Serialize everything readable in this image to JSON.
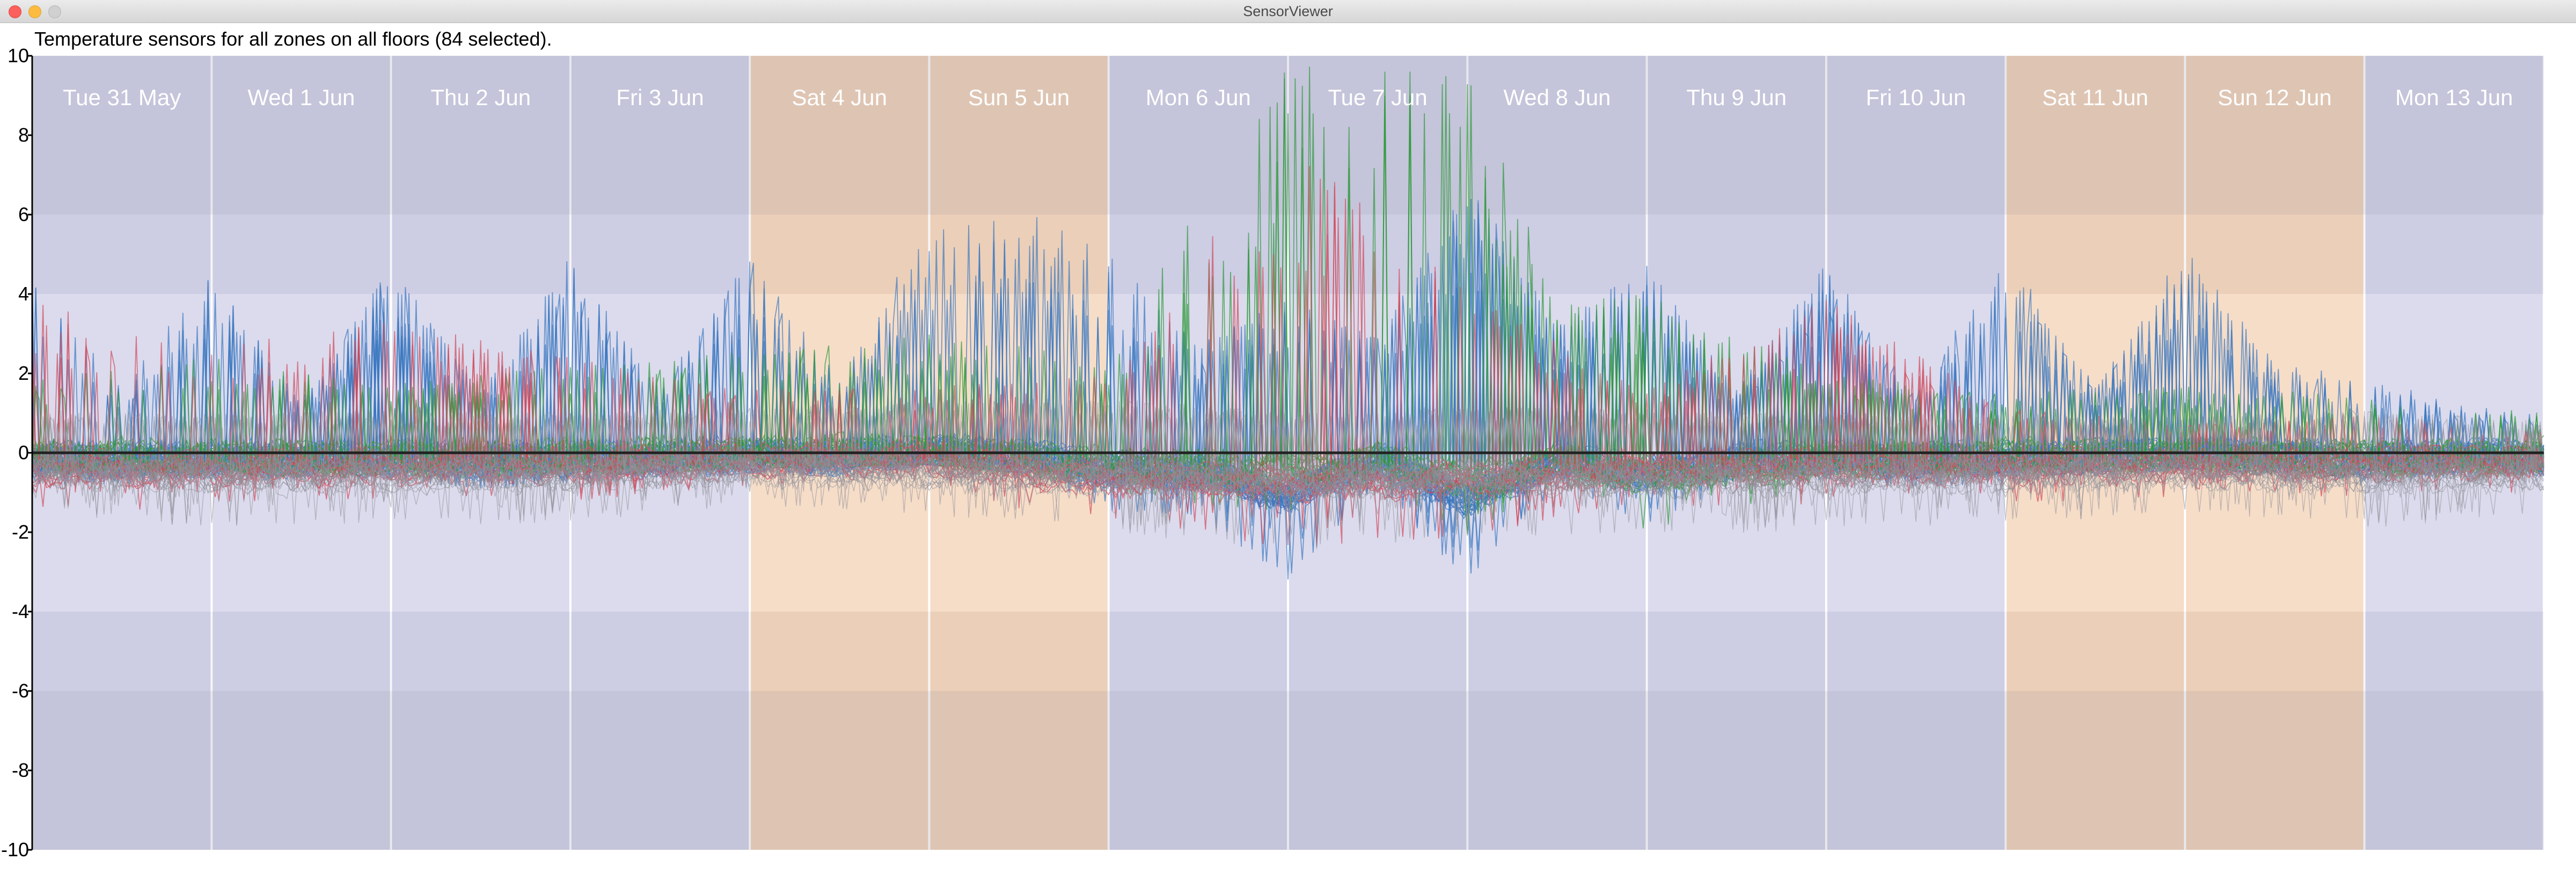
{
  "window": {
    "title": "SensorViewer"
  },
  "header": {
    "description": "Temperature sensors for all zones on all floors (84 selected)."
  },
  "colors": {
    "weekday": "#d4d4ea",
    "weekday_light": "#e2e2f6",
    "weekday_dark": "#c7c7dd",
    "weekend": "#f4d6bc",
    "weekend_dark": "#dcbea4",
    "series_blue": "#3a78c0",
    "series_green": "#2f9a3a",
    "series_red": "#d24a5a",
    "series_gray": "#8f8f99",
    "zero_line": "#222222"
  },
  "chart_data": {
    "type": "line",
    "title": "",
    "xlabel": "",
    "ylabel": "",
    "ylim": [
      -10,
      10
    ],
    "yticks": [
      -10,
      -8,
      -6,
      -4,
      -2,
      0,
      2,
      4,
      6,
      8,
      10
    ],
    "ytick_labels": [
      "-10",
      "-8",
      "-6",
      "-4",
      "-2",
      "0",
      "2",
      "4",
      "6",
      "8",
      "10"
    ],
    "x_domain": [
      "2022-05-31",
      "2022-06-14"
    ],
    "days": [
      {
        "label": "Tue 31 May",
        "weekend": false
      },
      {
        "label": "Wed 1 Jun",
        "weekend": false
      },
      {
        "label": "Thu 2 Jun",
        "weekend": false
      },
      {
        "label": "Fri 3 Jun",
        "weekend": false
      },
      {
        "label": "Sat 4 Jun",
        "weekend": true
      },
      {
        "label": "Sun 5 Jun",
        "weekend": true
      },
      {
        "label": "Mon 6 Jun",
        "weekend": false
      },
      {
        "label": "Tue 7 Jun",
        "weekend": false
      },
      {
        "label": "Wed 8 Jun",
        "weekend": false
      },
      {
        "label": "Thu 9 Jun",
        "weekend": false
      },
      {
        "label": "Fri 10 Jun",
        "weekend": false
      },
      {
        "label": "Sat 11 Jun",
        "weekend": true
      },
      {
        "label": "Sun 12 Jun",
        "weekend": true
      },
      {
        "label": "Mon 13 Jun",
        "weekend": false
      }
    ],
    "grid": true,
    "legend": "none",
    "series_count": 84,
    "series_groups": [
      {
        "color": "series_blue",
        "envelope": [
          [
            0.0,
            -0.8,
            4.5
          ],
          [
            0.5,
            -0.9,
            1.6
          ],
          [
            1.0,
            -0.7,
            4.7
          ],
          [
            1.5,
            -0.8,
            1.4
          ],
          [
            2.0,
            -0.7,
            4.8
          ],
          [
            2.5,
            -0.9,
            1.5
          ],
          [
            3.0,
            -0.8,
            5.0
          ],
          [
            3.5,
            -0.7,
            1.6
          ],
          [
            4.0,
            -0.5,
            5.2
          ],
          [
            4.5,
            -0.6,
            2.0
          ],
          [
            5.0,
            -0.3,
            5.8
          ],
          [
            5.5,
            -0.5,
            6.2
          ],
          [
            6.0,
            -1.5,
            5.0
          ],
          [
            6.5,
            -1.6,
            2.8
          ],
          [
            7.0,
            -3.3,
            4.0
          ],
          [
            7.5,
            -0.8,
            3.0
          ],
          [
            8.0,
            -3.6,
            7.0
          ],
          [
            8.5,
            -0.8,
            3.2
          ],
          [
            9.0,
            -1.8,
            4.8
          ],
          [
            9.5,
            -0.8,
            1.6
          ],
          [
            10.0,
            -0.7,
            4.9
          ],
          [
            10.5,
            -0.9,
            1.6
          ],
          [
            11.0,
            -0.8,
            5.1
          ],
          [
            11.5,
            -0.6,
            1.8
          ],
          [
            12.0,
            -0.4,
            5.2
          ],
          [
            12.5,
            -0.6,
            2.3
          ],
          [
            13.0,
            -0.8,
            2.0
          ],
          [
            13.5,
            -0.6,
            1.2
          ],
          [
            14.0,
            -0.6,
            1.0
          ]
        ]
      },
      {
        "color": "series_green",
        "envelope": [
          [
            0.0,
            -0.6,
            2.0
          ],
          [
            1.0,
            -0.7,
            2.4
          ],
          [
            2.0,
            -0.7,
            1.8
          ],
          [
            3.0,
            -0.6,
            2.2
          ],
          [
            4.0,
            -0.4,
            2.6
          ],
          [
            5.0,
            -0.3,
            3.2
          ],
          [
            6.0,
            -1.2,
            2.4
          ],
          [
            7.0,
            -1.5,
            10.0
          ],
          [
            7.5,
            -0.8,
            10.0
          ],
          [
            8.0,
            -2.2,
            10.0
          ],
          [
            8.5,
            -0.9,
            4.0
          ],
          [
            9.0,
            -2.0,
            4.0
          ],
          [
            10.0,
            -0.8,
            2.0
          ],
          [
            11.0,
            -0.6,
            1.6
          ],
          [
            12.0,
            -0.5,
            1.8
          ],
          [
            13.0,
            -0.7,
            1.4
          ],
          [
            14.0,
            -0.6,
            1.0
          ]
        ]
      },
      {
        "color": "series_red",
        "envelope": [
          [
            0.0,
            -1.6,
            3.8
          ],
          [
            1.0,
            -1.4,
            2.6
          ],
          [
            2.0,
            -1.3,
            3.5
          ],
          [
            3.0,
            -1.2,
            2.4
          ],
          [
            4.0,
            -0.9,
            1.6
          ],
          [
            5.0,
            -0.8,
            1.8
          ],
          [
            6.0,
            -2.2,
            2.0
          ],
          [
            7.0,
            -2.4,
            8.0
          ],
          [
            8.0,
            -2.2,
            4.2
          ],
          [
            9.0,
            -1.4,
            1.6
          ],
          [
            10.0,
            -1.3,
            3.9
          ],
          [
            11.0,
            -1.3,
            1.2
          ],
          [
            12.0,
            -1.2,
            0.8
          ],
          [
            13.0,
            -1.1,
            1.0
          ],
          [
            14.0,
            -1.0,
            0.6
          ]
        ]
      },
      {
        "color": "series_gray",
        "envelope": [
          [
            0.0,
            -1.5,
            1.1
          ],
          [
            1.0,
            -1.9,
            1.0
          ],
          [
            2.0,
            -1.8,
            1.1
          ],
          [
            3.0,
            -1.8,
            1.0
          ],
          [
            4.0,
            -1.3,
            1.2
          ],
          [
            5.0,
            -1.6,
            1.3
          ],
          [
            6.0,
            -2.0,
            1.4
          ],
          [
            7.0,
            -2.5,
            1.0
          ],
          [
            8.0,
            -2.1,
            1.2
          ],
          [
            9.0,
            -2.2,
            1.1
          ],
          [
            10.0,
            -1.9,
            1.0
          ],
          [
            11.0,
            -1.8,
            1.0
          ],
          [
            12.0,
            -1.5,
            0.9
          ],
          [
            13.0,
            -1.9,
            1.1
          ],
          [
            14.0,
            -1.6,
            0.8
          ]
        ]
      }
    ]
  }
}
